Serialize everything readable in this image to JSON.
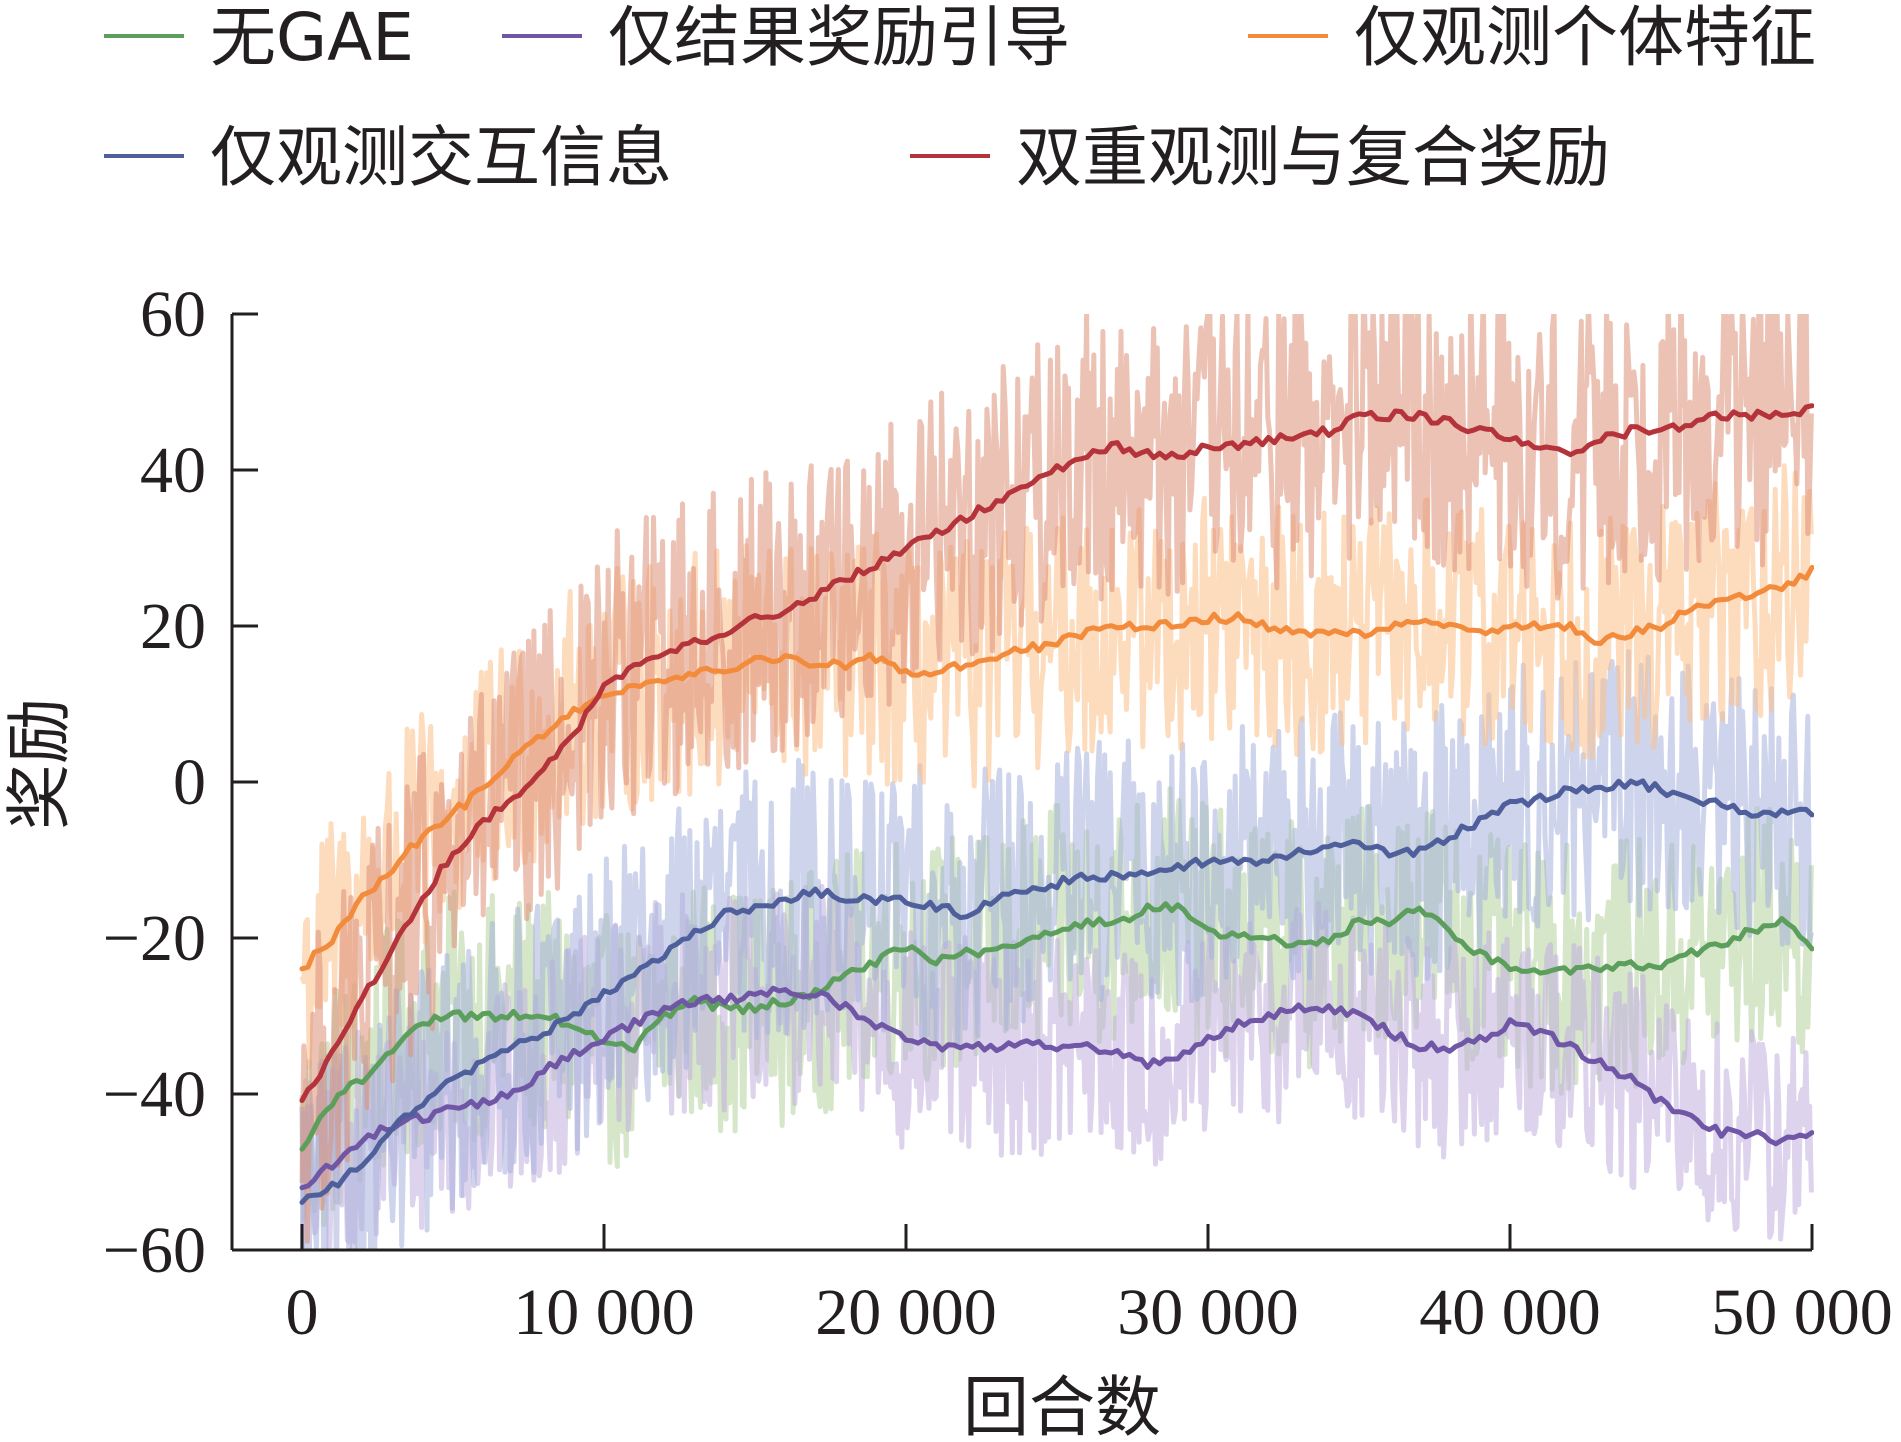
{
  "chart_data": {
    "type": "line",
    "xlabel": "回合数",
    "ylabel": "奖励",
    "xlim": [
      0,
      50000
    ],
    "ylim": [
      -60,
      60
    ],
    "xticks": [
      0,
      10000,
      20000,
      30000,
      40000,
      50000
    ],
    "xtick_labels": [
      "0",
      "10 000",
      "20 000",
      "30 000",
      "40 000",
      "50 000"
    ],
    "yticks": [
      -60,
      -40,
      -20,
      0,
      20,
      40,
      60
    ],
    "ytick_labels": [
      "−60",
      "−40",
      "−20",
      "0",
      "20",
      "40",
      "60"
    ],
    "grid": false,
    "legend_position": "top",
    "series": [
      {
        "name": "无GAE",
        "color": "#5c9e5b",
        "band_color": "#b4d29c",
        "noise": 10,
        "x": [
          0,
          1000,
          2000,
          3000,
          4000,
          5000,
          6000,
          7000,
          8000,
          9000,
          10000,
          11000,
          12000,
          13000,
          14000,
          15000,
          16000,
          17000,
          18000,
          19000,
          20000,
          21000,
          22000,
          23000,
          24000,
          25000,
          26000,
          27000,
          28000,
          29000,
          30000,
          31000,
          32000,
          33000,
          34000,
          35000,
          36000,
          37000,
          38000,
          39000,
          40000,
          41000,
          42000,
          43000,
          44000,
          45000,
          46000,
          47000,
          48000,
          49000,
          50000
        ],
        "y": [
          -47,
          -41,
          -38,
          -34,
          -31,
          -30,
          -30,
          -30,
          -30,
          -31,
          -33,
          -34,
          -30,
          -28,
          -29,
          -29,
          -28,
          -27,
          -25,
          -23,
          -21,
          -23,
          -22,
          -22,
          -20,
          -19,
          -18,
          -18,
          -16,
          -16,
          -19,
          -20,
          -20,
          -21,
          -20,
          -18,
          -18,
          -16,
          -19,
          -22,
          -24,
          -24,
          -24,
          -24,
          -23,
          -24,
          -22,
          -21,
          -19,
          -18,
          -21
        ]
      },
      {
        "name": "仅结果奖励引导",
        "color": "#6f57a6",
        "band_color": "#c3aede",
        "noise": 9,
        "x": [
          0,
          1000,
          2000,
          3000,
          4000,
          5000,
          6000,
          7000,
          8000,
          9000,
          10000,
          11000,
          12000,
          13000,
          14000,
          15000,
          16000,
          17000,
          18000,
          19000,
          20000,
          21000,
          22000,
          23000,
          24000,
          25000,
          26000,
          27000,
          28000,
          29000,
          30000,
          31000,
          32000,
          33000,
          34000,
          35000,
          36000,
          37000,
          38000,
          39000,
          40000,
          41000,
          42000,
          43000,
          44000,
          45000,
          46000,
          47000,
          48000,
          49000,
          50000
        ],
        "y": [
          -52,
          -49,
          -46,
          -44,
          -43,
          -42,
          -41,
          -40,
          -37,
          -35,
          -33,
          -31,
          -29,
          -28,
          -28,
          -27,
          -27,
          -27,
          -29,
          -31,
          -33,
          -34,
          -34,
          -34,
          -33,
          -34,
          -34,
          -35,
          -36,
          -35,
          -33,
          -31,
          -30,
          -29,
          -29,
          -30,
          -32,
          -34,
          -34,
          -33,
          -31,
          -32,
          -34,
          -36,
          -38,
          -41,
          -43,
          -45,
          -45,
          -46,
          -45
        ]
      },
      {
        "name": "仅观测个体特征",
        "color": "#f28b3c",
        "band_color": "#fbbf88",
        "noise": 10,
        "x": [
          0,
          1000,
          2000,
          3000,
          4000,
          5000,
          6000,
          7000,
          8000,
          9000,
          10000,
          11000,
          12000,
          13000,
          14000,
          15000,
          16000,
          17000,
          18000,
          19000,
          20000,
          21000,
          22000,
          23000,
          24000,
          25000,
          26000,
          27000,
          28000,
          29000,
          30000,
          31000,
          32000,
          33000,
          34000,
          35000,
          36000,
          37000,
          38000,
          39000,
          40000,
          41000,
          42000,
          43000,
          44000,
          45000,
          46000,
          47000,
          48000,
          49000,
          50000
        ],
        "y": [
          -24,
          -20,
          -15,
          -11,
          -7,
          -4,
          -1,
          3,
          6,
          9,
          11,
          12,
          13,
          14,
          14,
          16,
          16,
          15,
          15,
          16,
          14,
          14,
          15,
          16,
          17,
          18,
          19,
          20,
          20,
          20,
          21,
          21,
          20,
          19,
          19,
          19,
          20,
          21,
          20,
          19,
          20,
          20,
          20,
          18,
          19,
          20,
          22,
          23,
          24,
          25,
          27
        ]
      },
      {
        "name": "仅观测交互信息",
        "color": "#4e5f9c",
        "band_color": "#a6b1da",
        "noise": 11,
        "x": [
          0,
          1000,
          2000,
          3000,
          4000,
          5000,
          6000,
          7000,
          8000,
          9000,
          10000,
          11000,
          12000,
          13000,
          14000,
          15000,
          16000,
          17000,
          18000,
          19000,
          20000,
          21000,
          22000,
          23000,
          24000,
          25000,
          26000,
          27000,
          28000,
          29000,
          30000,
          31000,
          32000,
          33000,
          34000,
          35000,
          36000,
          37000,
          38000,
          39000,
          40000,
          41000,
          42000,
          43000,
          44000,
          45000,
          46000,
          47000,
          48000,
          49000,
          50000
        ],
        "y": [
          -54,
          -52,
          -49,
          -44,
          -41,
          -38,
          -36,
          -34,
          -32,
          -30,
          -27,
          -25,
          -22,
          -19,
          -17,
          -16,
          -15,
          -14,
          -15,
          -15,
          -15,
          -16,
          -17,
          -15,
          -14,
          -13,
          -12,
          -12,
          -12,
          -11,
          -10,
          -10,
          -10,
          -9,
          -8,
          -8,
          -9,
          -9,
          -7,
          -5,
          -3,
          -2,
          -1,
          -1,
          0,
          -1,
          -2,
          -3,
          -4,
          -4,
          -4
        ]
      },
      {
        "name": "双重观测与复合奖励",
        "color": "#b5333a",
        "band_color": "#dd8f79",
        "noise": 12,
        "x": [
          0,
          1000,
          2000,
          3000,
          4000,
          5000,
          6000,
          7000,
          8000,
          9000,
          10000,
          11000,
          12000,
          13000,
          14000,
          15000,
          16000,
          17000,
          18000,
          19000,
          20000,
          21000,
          22000,
          23000,
          24000,
          25000,
          26000,
          27000,
          28000,
          29000,
          30000,
          31000,
          32000,
          33000,
          34000,
          35000,
          36000,
          37000,
          38000,
          39000,
          40000,
          41000,
          42000,
          43000,
          44000,
          45000,
          46000,
          47000,
          48000,
          49000,
          50000
        ],
        "y": [
          -41,
          -35,
          -28,
          -21,
          -15,
          -9,
          -5,
          -2,
          2,
          6,
          12,
          15,
          16,
          18,
          19,
          21,
          22,
          24,
          26,
          28,
          30,
          32,
          34,
          36,
          38,
          40,
          42,
          43,
          42,
          42,
          43,
          43,
          44,
          44,
          45,
          47,
          47,
          47,
          46,
          45,
          44,
          43,
          42,
          44,
          45,
          45,
          46,
          47,
          47,
          47,
          48
        ]
      }
    ]
  }
}
